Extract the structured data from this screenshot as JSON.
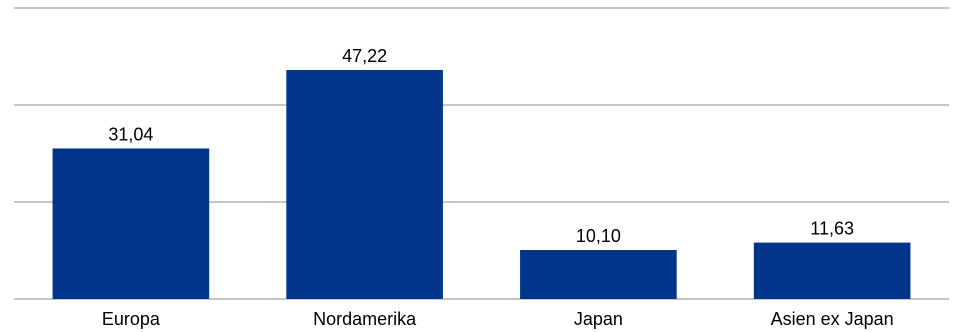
{
  "chart_data": {
    "type": "bar",
    "categories": [
      "Europa",
      "Nordamerika",
      "Japan",
      "Asien ex Japan"
    ],
    "values": [
      31.04,
      47.22,
      10.1,
      11.63
    ],
    "value_labels": [
      "31,04",
      "47,22",
      "10,10",
      "11,63"
    ],
    "title": "",
    "xlabel": "",
    "ylabel": "",
    "ylim": [
      0,
      60
    ],
    "gridlines": [
      0,
      20,
      40,
      60
    ],
    "grid": true,
    "legend": "none",
    "bar_color": "#003589",
    "grid_color": "#b3b3b3"
  }
}
